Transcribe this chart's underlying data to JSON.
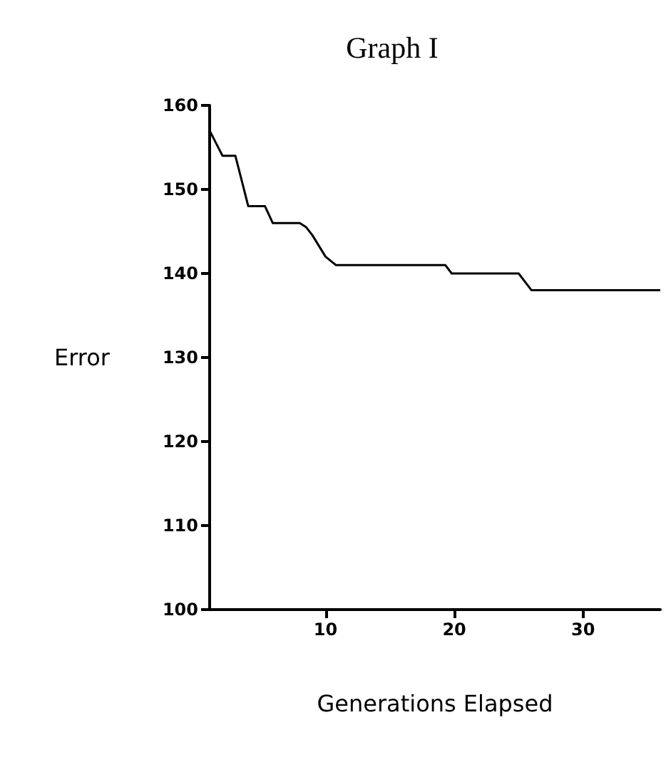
{
  "chart_data": {
    "type": "line",
    "title": "Graph I",
    "xlabel": "Generations Elapsed",
    "ylabel": "Error",
    "x": [
      1,
      1.5,
      2,
      3,
      3.5,
      4,
      5.3,
      5.9,
      8,
      8.5,
      9,
      10,
      10.8,
      19.3,
      19.8,
      25,
      25.5,
      26,
      36
    ],
    "values": [
      157,
      155.5,
      154,
      154,
      151,
      148,
      148,
      146,
      146,
      145.5,
      144.5,
      142,
      141,
      141,
      140,
      140,
      139,
      138,
      138
    ],
    "color": "#000000",
    "xlim": [
      1,
      36
    ],
    "xticks": [
      10,
      20,
      30
    ],
    "ylim": [
      100,
      160
    ],
    "yticks": [
      100,
      110,
      120,
      130,
      140,
      150,
      160
    ],
    "grid": false,
    "marker": "none",
    "line_style": "solid"
  }
}
